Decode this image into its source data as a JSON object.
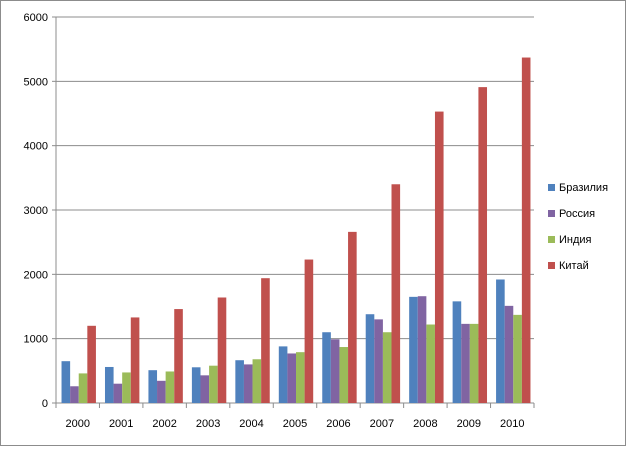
{
  "chart_data": {
    "type": "bar",
    "title": "",
    "xlabel": "",
    "ylabel": "",
    "ylim": [
      0,
      6000
    ],
    "yticks": [
      0,
      1000,
      2000,
      3000,
      4000,
      5000,
      6000
    ],
    "grid": true,
    "legend_position": "right",
    "categories": [
      "2000",
      "2001",
      "2002",
      "2003",
      "2004",
      "2005",
      "2006",
      "2007",
      "2008",
      "2009",
      "2010"
    ],
    "series": [
      {
        "name": "Бразилия",
        "color": "#4f81bd",
        "values": [
          650,
          560,
          510,
          555,
          665,
          880,
          1100,
          1380,
          1650,
          1580,
          1920
        ]
      },
      {
        "name": "Россия",
        "color": "#8064a2",
        "values": [
          260,
          300,
          345,
          430,
          600,
          770,
          990,
          1300,
          1660,
          1230,
          1510
        ]
      },
      {
        "name": "Индия",
        "color": "#9bbb59",
        "values": [
          460,
          475,
          490,
          580,
          680,
          790,
          870,
          1100,
          1220,
          1230,
          1370
        ]
      },
      {
        "name": "Китай",
        "color": "#c0504d",
        "values": [
          1200,
          1330,
          1460,
          1640,
          1940,
          2230,
          2660,
          3400,
          4530,
          4910,
          5370
        ]
      }
    ]
  }
}
